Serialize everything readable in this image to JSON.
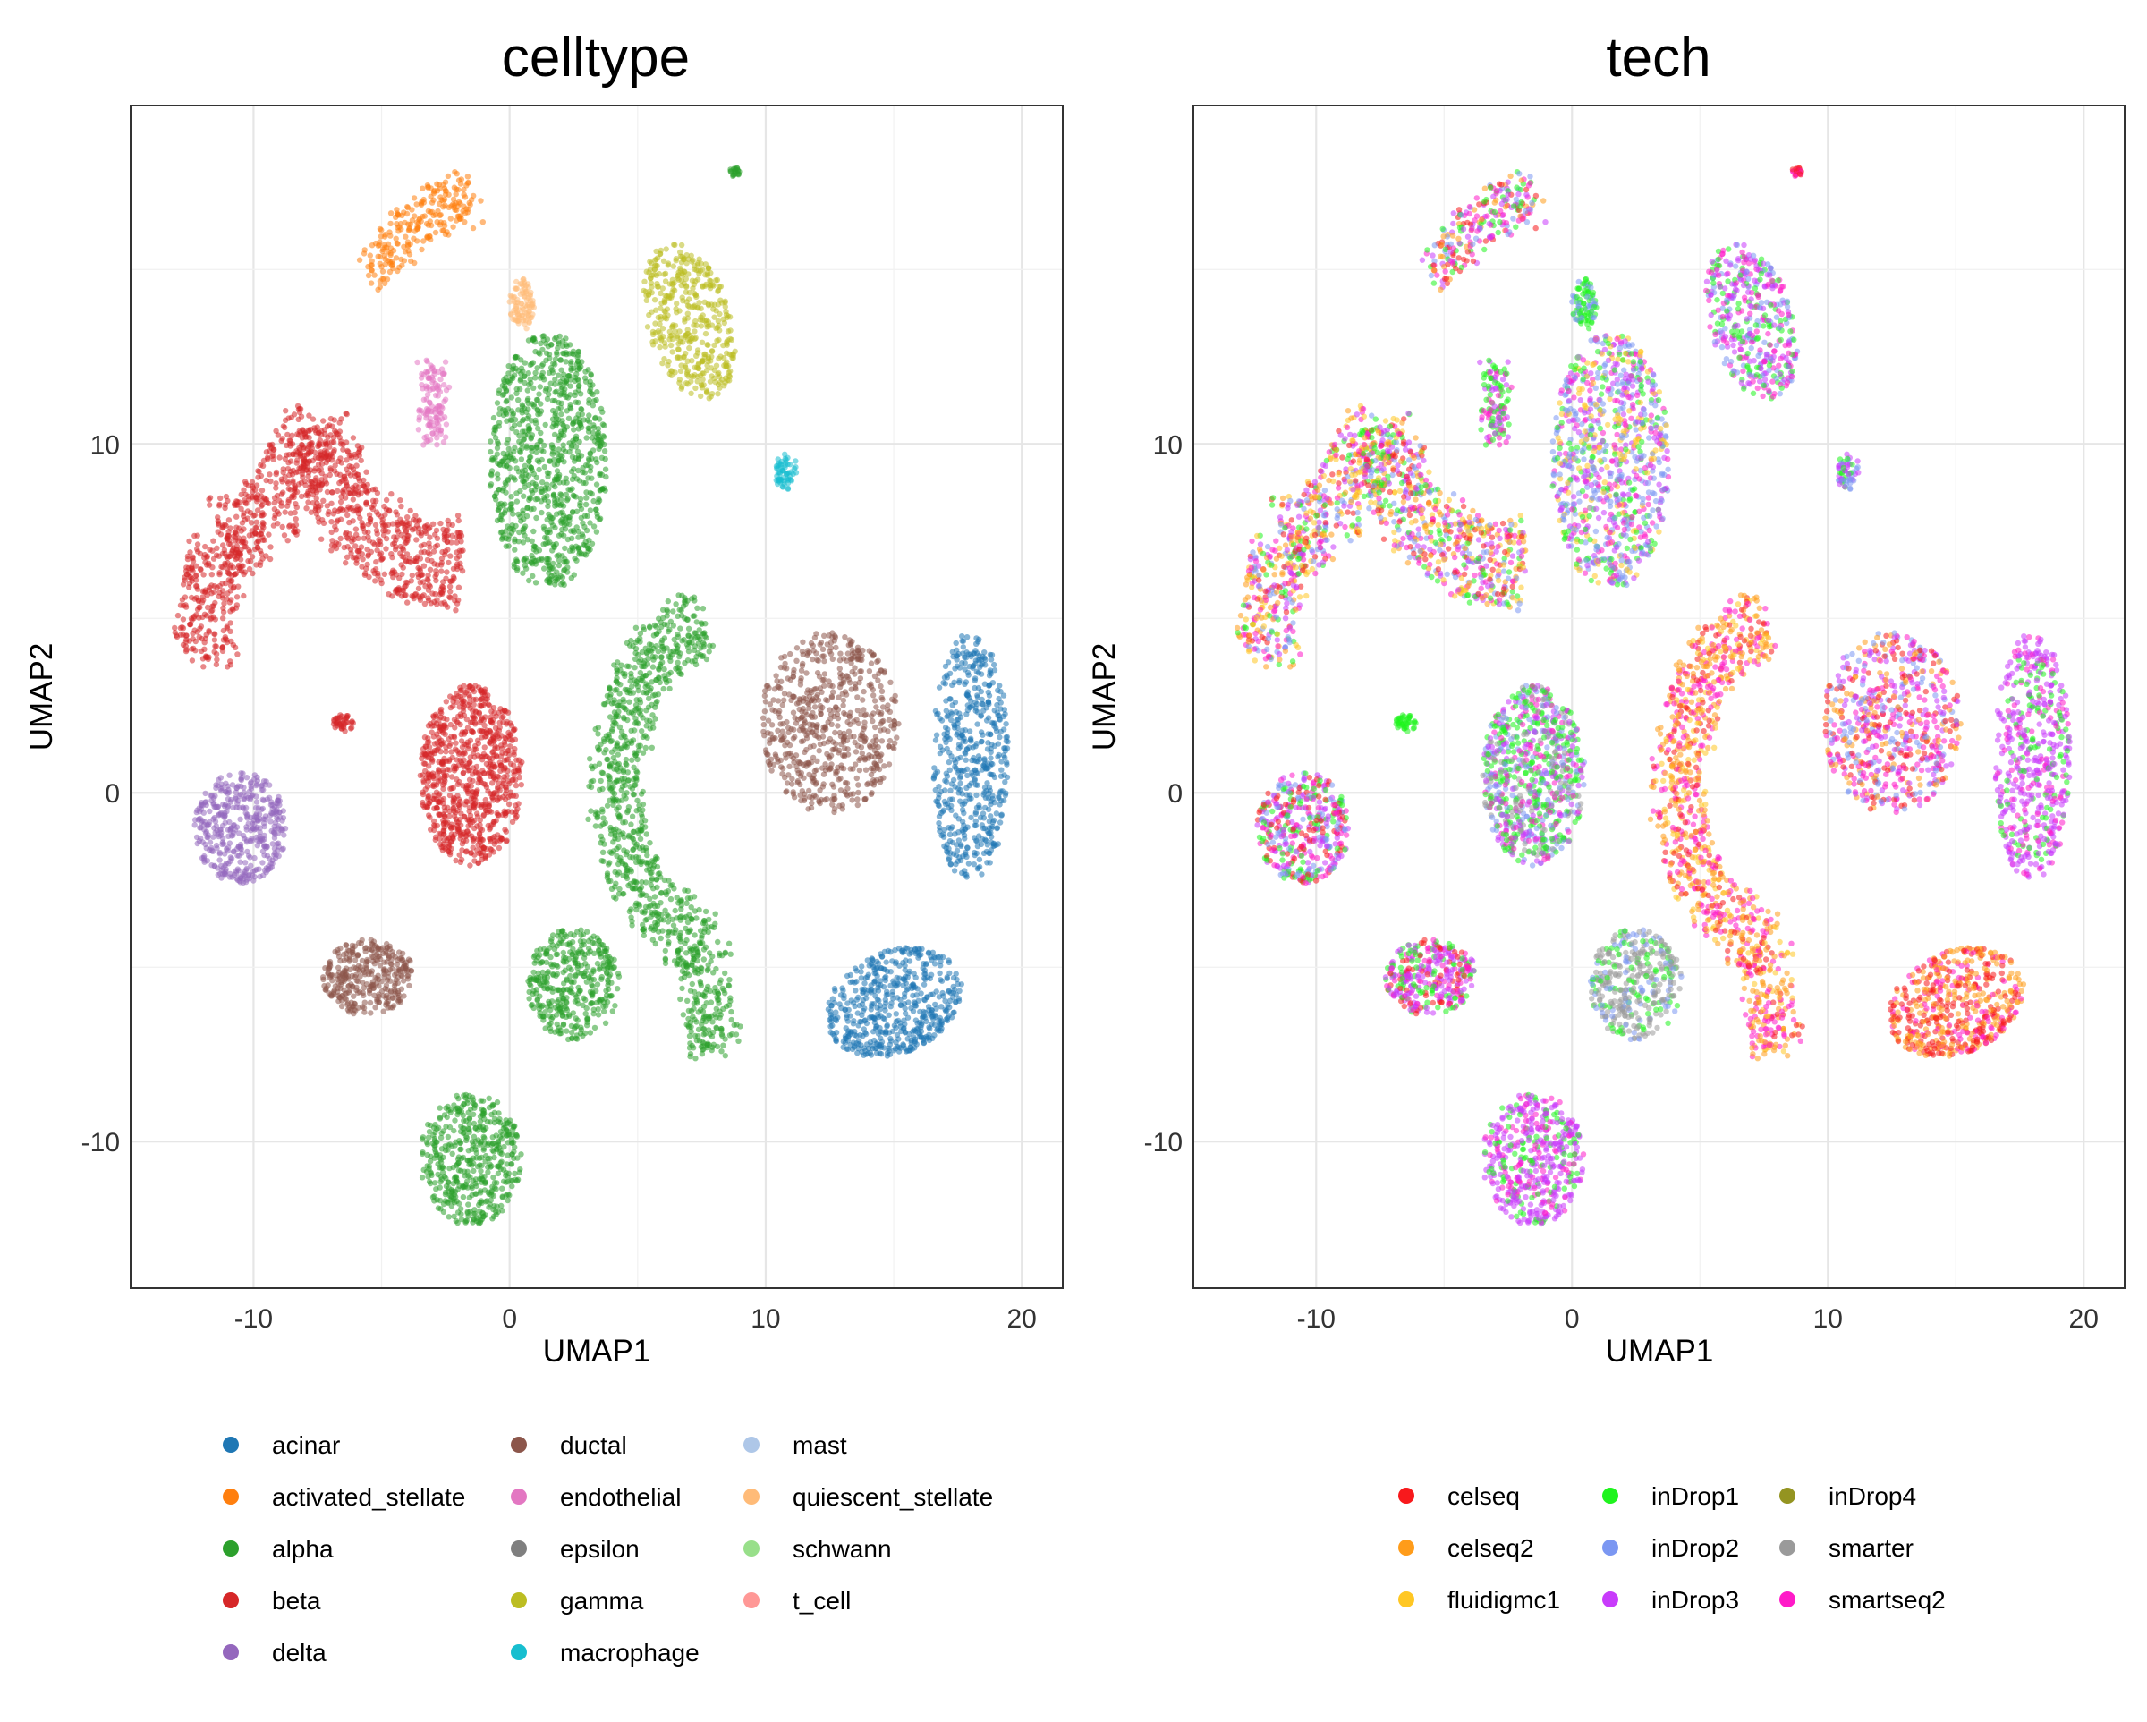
{
  "chart_data": [
    {
      "type": "scatter",
      "title": "celltype",
      "xlabel": "UMAP1",
      "ylabel": "UMAP2",
      "xlim": [
        -14.8,
        21.6
      ],
      "ylim": [
        -14.2,
        19.7
      ],
      "xticks": [
        -10,
        0,
        10,
        20
      ],
      "yticks": [
        -10,
        0,
        10
      ],
      "xtick_labels": [
        "-10",
        "0",
        "10",
        "20"
      ],
      "ytick_labels": [
        "-10",
        "0",
        "10"
      ],
      "grid": true,
      "legend_position": "bottom",
      "legend": [
        {
          "name": "acinar",
          "color": "#1F77B4"
        },
        {
          "name": "activated_stellate",
          "color": "#FF7F0E"
        },
        {
          "name": "alpha",
          "color": "#2CA02C"
        },
        {
          "name": "beta",
          "color": "#D62728"
        },
        {
          "name": "delta",
          "color": "#9467BD"
        },
        {
          "name": "ductal",
          "color": "#8C564B"
        },
        {
          "name": "endothelial",
          "color": "#E377C2"
        },
        {
          "name": "epsilon",
          "color": "#7F7F7F"
        },
        {
          "name": "gamma",
          "color": "#BCBD22"
        },
        {
          "name": "macrophage",
          "color": "#17BECF"
        },
        {
          "name": "mast",
          "color": "#AEC7E8"
        },
        {
          "name": "quiescent_stellate",
          "color": "#FFBB78"
        },
        {
          "name": "schwann",
          "color": "#98DF8A"
        },
        {
          "name": "t_cell",
          "color": "#FF9896"
        }
      ],
      "clusters": [
        {
          "label": "acinar",
          "x": 18.0,
          "y": 1.0,
          "n": 520
        },
        {
          "label": "acinar",
          "x": 15.0,
          "y": -6.0,
          "n": 520
        },
        {
          "label": "activated_stellate",
          "x": -3.5,
          "y": 16.0,
          "n": 240
        },
        {
          "label": "alpha",
          "x": 1.5,
          "y": 9.5,
          "n": 900
        },
        {
          "label": "alpha",
          "x": 4.5,
          "y": -1.0,
          "n": 1000
        },
        {
          "label": "alpha",
          "x": 2.5,
          "y": -5.5,
          "n": 380
        },
        {
          "label": "alpha",
          "x": -1.5,
          "y": -10.5,
          "n": 480
        },
        {
          "label": "alpha",
          "x": 8.8,
          "y": 17.8,
          "n": 20
        },
        {
          "label": "beta",
          "x": -8.0,
          "y": 8.0,
          "n": 1250
        },
        {
          "label": "beta",
          "x": -1.5,
          "y": 0.5,
          "n": 800
        },
        {
          "label": "beta",
          "x": -6.5,
          "y": 2.0,
          "n": 40
        },
        {
          "label": "delta",
          "x": -10.5,
          "y": -1.0,
          "n": 420
        },
        {
          "label": "ductal",
          "x": 12.5,
          "y": 2.0,
          "n": 620
        },
        {
          "label": "ductal",
          "x": -5.5,
          "y": -5.3,
          "n": 330
        },
        {
          "label": "endothelial",
          "x": -3.0,
          "y": 11.3,
          "n": 120
        },
        {
          "label": "gamma",
          "x": 7.0,
          "y": 13.5,
          "n": 420
        },
        {
          "label": "macrophage",
          "x": 10.8,
          "y": 9.2,
          "n": 60
        },
        {
          "label": "quiescent_stellate",
          "x": 0.5,
          "y": 14.0,
          "n": 90
        }
      ]
    },
    {
      "type": "scatter",
      "title": "tech",
      "xlabel": "UMAP1",
      "ylabel": "UMAP2",
      "xlim": [
        -14.8,
        21.6
      ],
      "ylim": [
        -14.2,
        19.7
      ],
      "xticks": [
        -10,
        0,
        10,
        20
      ],
      "yticks": [
        -10,
        0,
        10
      ],
      "xtick_labels": [
        "-10",
        "0",
        "10",
        "20"
      ],
      "ytick_labels": [
        "-10",
        "0",
        "10"
      ],
      "grid": true,
      "legend_position": "bottom",
      "legend": [
        {
          "name": "celseq",
          "color": "#F8191C"
        },
        {
          "name": "celseq2",
          "color": "#FF9C1A"
        },
        {
          "name": "fluidigmc1",
          "color": "#FFC723"
        },
        {
          "name": "inDrop1",
          "color": "#1FF41E"
        },
        {
          "name": "inDrop2",
          "color": "#7B97F2"
        },
        {
          "name": "inDrop3",
          "color": "#C83BFB"
        },
        {
          "name": "inDrop4",
          "color": "#949421"
        },
        {
          "name": "smarter",
          "color": "#9A9A9A"
        },
        {
          "name": "smartseq2",
          "color": "#FF1AC8"
        }
      ]
    }
  ]
}
